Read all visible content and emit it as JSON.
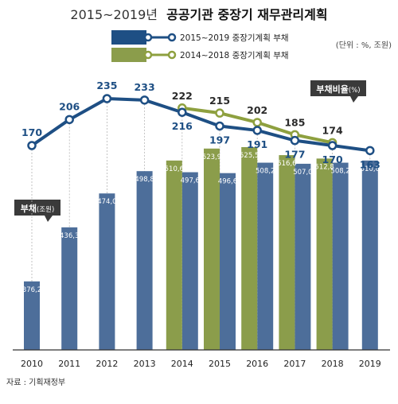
{
  "title_prefix": "2015~2019년",
  "title_main": "공공기관 중장기 재무관리계획",
  "unit_note": "(단위 : %, 조원)",
  "source": "자료 : 기획재정부",
  "legend": {
    "plan2015": "2015~2019 중장기계획 부채",
    "plan2014": "2014~2018 중장기계획 부채"
  },
  "callouts": {
    "ratio_main": "부채비율",
    "ratio_unit": "(%)",
    "debt_main": "부채",
    "debt_unit": "(조원)"
  },
  "colors": {
    "blue_bar": "#4d6e9a",
    "blue_line": "#1e4f84",
    "green_bar": "#8b9d4b",
    "green_line": "#8ea03f",
    "callout": "#3a3a3a",
    "axis": "#333333"
  },
  "chart_data": {
    "type": "bar+line",
    "categories": [
      "2010",
      "2011",
      "2012",
      "2013",
      "2014",
      "2015",
      "2016",
      "2017",
      "2018",
      "2019"
    ],
    "series": [
      {
        "name": "2015~2019 중장기계획 부채",
        "kind": "bar",
        "values": [
          376.2,
          436.3,
          474.0,
          498.8,
          497.6,
          496.6,
          508.2,
          507.0,
          508.2,
          510.6
        ],
        "labels": [
          "376,2",
          "436,3",
          "474,0",
          "498,8",
          "497,6",
          "496,6",
          "508,2",
          "507,0",
          "508,2",
          "510,6"
        ]
      },
      {
        "name": "2014~2018 중장기계획 부채",
        "kind": "bar",
        "values": [
          null,
          null,
          null,
          null,
          510.6,
          523.9,
          525.5,
          516.6,
          512.8,
          null
        ],
        "labels": [
          "",
          "",
          "",
          "",
          "510,6",
          "523,9",
          "525,5",
          "516,6",
          "512,8",
          ""
        ]
      },
      {
        "name": "부채비율 (2015~2019 계획)",
        "kind": "line",
        "values": [
          170,
          206,
          235,
          233,
          216,
          197,
          191,
          177,
          170,
          163
        ]
      },
      {
        "name": "부채비율 (2014~2018 계획)",
        "kind": "line",
        "values": [
          null,
          null,
          null,
          null,
          222,
          215,
          202,
          185,
          174,
          null
        ]
      }
    ],
    "bar_axis_range": [
      0,
      600
    ],
    "line_axis_range": [
      0,
      260
    ],
    "grid": false,
    "legend_position": "top-left"
  }
}
